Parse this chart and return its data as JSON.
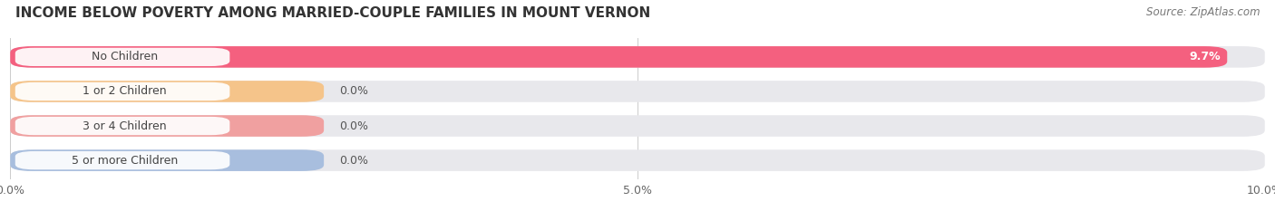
{
  "title": "INCOME BELOW POVERTY AMONG MARRIED-COUPLE FAMILIES IN MOUNT VERNON",
  "source": "Source: ZipAtlas.com",
  "categories": [
    "No Children",
    "1 or 2 Children",
    "3 or 4 Children",
    "5 or more Children"
  ],
  "values": [
    9.7,
    0.0,
    0.0,
    0.0
  ],
  "bar_colors": [
    "#f4607f",
    "#f5c48a",
    "#f0a0a0",
    "#a8bede"
  ],
  "xlim": [
    0,
    10.0
  ],
  "xticks": [
    0.0,
    5.0,
    10.0
  ],
  "xticklabels": [
    "0.0%",
    "5.0%",
    "10.0%"
  ],
  "bar_background_color": "#e8e8ec",
  "title_fontsize": 11,
  "source_fontsize": 8.5,
  "label_fontsize": 9,
  "value_fontsize": 9,
  "tick_fontsize": 9,
  "fig_width": 14.06,
  "fig_height": 2.33
}
